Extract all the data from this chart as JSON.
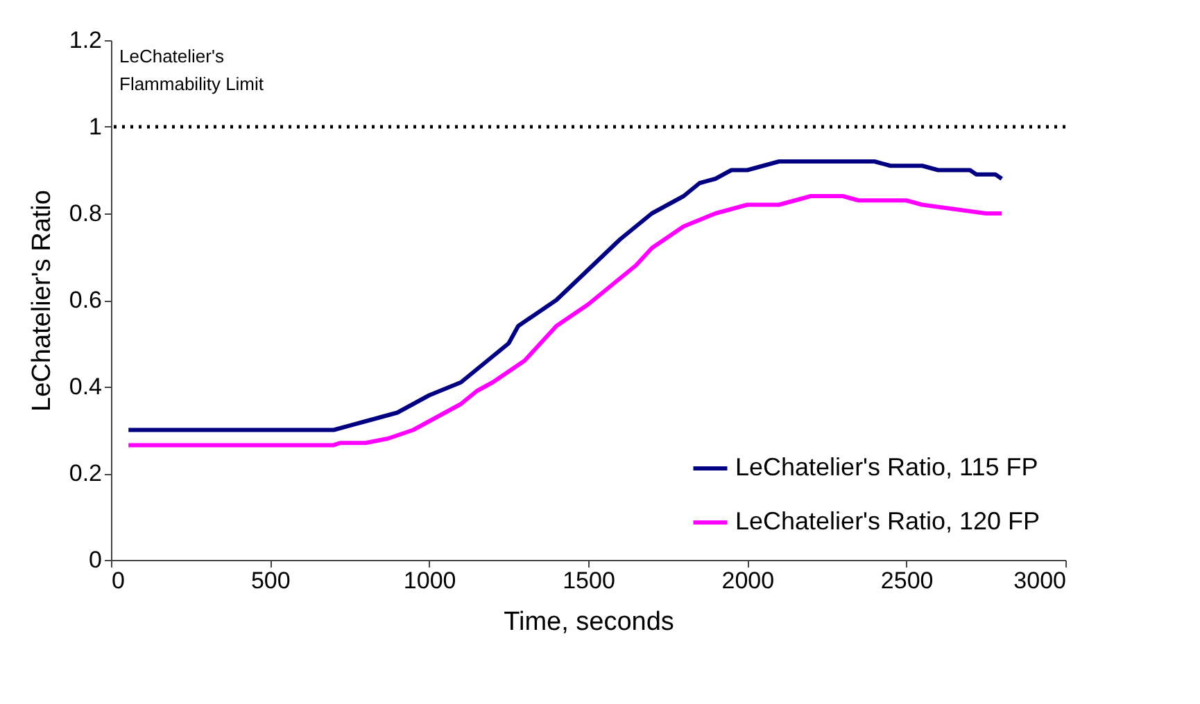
{
  "chart_data": {
    "type": "line",
    "xlabel": "Time, seconds",
    "ylabel": "LeChatelier's Ratio",
    "xlim": [
      0,
      3000
    ],
    "xticks": [
      0,
      500,
      1000,
      1500,
      2000,
      2500,
      3000
    ],
    "ylim": [
      0,
      1.2
    ],
    "yticks": [
      0,
      0.2,
      0.4,
      0.6,
      0.8,
      1,
      1.2
    ],
    "grid": false,
    "legend": "bottom right",
    "line_style": "solid",
    "ref_lines": [
      {
        "axis": "y",
        "value": 1,
        "label": "LeChatelier's\nFlammability Limit",
        "color": "#000000",
        "line_style": "dotted"
      }
    ],
    "series": [
      {
        "name": "LeChatelier's Ratio, 115 FP",
        "color": "#000080",
        "x": [
          55,
          700,
          800,
          900,
          1000,
          1100,
          1200,
          1250,
          1280,
          1400,
          1500,
          1600,
          1700,
          1800,
          1850,
          1900,
          1950,
          2000,
          2050,
          2100,
          2400,
          2450,
          2550,
          2600,
          2700,
          2720,
          2780,
          2800
        ],
        "values": [
          0.3,
          0.3,
          0.32,
          0.34,
          0.38,
          0.41,
          0.47,
          0.5,
          0.54,
          0.6,
          0.67,
          0.74,
          0.8,
          0.84,
          0.87,
          0.88,
          0.9,
          0.9,
          0.91,
          0.92,
          0.92,
          0.91,
          0.91,
          0.9,
          0.9,
          0.89,
          0.89,
          0.88
        ]
      },
      {
        "name": "LeChatelier's Ratio, 120 FP",
        "color": "#ff00ff",
        "x": [
          55,
          700,
          720,
          800,
          870,
          950,
          1000,
          1100,
          1150,
          1200,
          1300,
          1350,
          1400,
          1500,
          1600,
          1650,
          1700,
          1800,
          1900,
          2000,
          2100,
          2150,
          2200,
          2300,
          2350,
          2500,
          2550,
          2650,
          2750,
          2800
        ],
        "values": [
          0.265,
          0.265,
          0.27,
          0.27,
          0.28,
          0.3,
          0.32,
          0.36,
          0.39,
          0.41,
          0.46,
          0.5,
          0.54,
          0.59,
          0.65,
          0.68,
          0.72,
          0.77,
          0.8,
          0.82,
          0.82,
          0.83,
          0.84,
          0.84,
          0.83,
          0.83,
          0.82,
          0.81,
          0.8,
          0.8
        ]
      }
    ]
  }
}
